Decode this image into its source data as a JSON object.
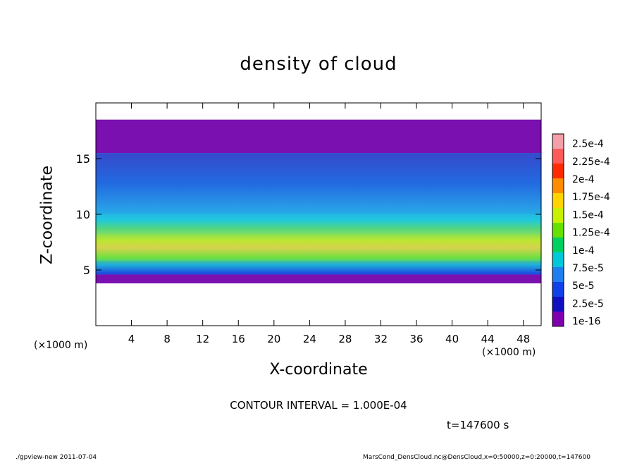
{
  "chart_data": {
    "type": "heatmap",
    "title": "density of cloud",
    "xlabel": "X-coordinate",
    "ylabel": "Z-coordinate",
    "x_unit_label": "(×1000 m)",
    "xlim": [
      0,
      50
    ],
    "ylim": [
      0,
      20
    ],
    "x_ticks": [
      4,
      8,
      12,
      16,
      20,
      24,
      28,
      32,
      36,
      40,
      44,
      48
    ],
    "y_ticks": [
      5,
      10,
      15
    ],
    "colorbar_labels": [
      "2.5e-4",
      "2.25e-4",
      "2e-4",
      "1.75e-4",
      "1.5e-4",
      "1.25e-4",
      "1e-4",
      "7.5e-5",
      "5e-5",
      "2.5e-5",
      "1e-16"
    ],
    "colorbar_colors": [
      "#f4a0a8",
      "#ff5a5a",
      "#ff2a00",
      "#ff8c00",
      "#ffd400",
      "#c8f000",
      "#66e000",
      "#00d060",
      "#00c8d8",
      "#1f7ff0",
      "#1040e8",
      "#1010c0",
      "#8000b0"
    ],
    "cloud_layers": [
      {
        "z_bottom": 15.5,
        "z_top": 18.5,
        "level": "1e-16 to 2.5e-5",
        "color": "#7a10b0"
      },
      {
        "z_bottom": 10,
        "z_top": 15.5,
        "level": "5e-5 to 7.5e-5",
        "color": "#2080e0"
      },
      {
        "z_bottom": 8.2,
        "z_top": 10,
        "level": "7.5e-5 to 1e-4",
        "color": "#20c8e0"
      },
      {
        "z_bottom": 5.8,
        "z_top": 8.2,
        "level": "1e-4 to 1.75e-4",
        "color": "#70e040"
      },
      {
        "z_bottom": 4.6,
        "z_top": 5.8,
        "level": "2.5e-5 to 7.5e-5",
        "color": "#1a50e8"
      },
      {
        "z_bottom": 3.8,
        "z_top": 4.6,
        "level": "1e-16 to 2.5e-5",
        "color": "#7a10b0"
      }
    ],
    "contour_interval": "CONTOUR INTERVAL = 1.000E-04",
    "time_label": "t=147600 s"
  },
  "footer": {
    "left": "./gpview-new  2011-07-04",
    "right": "MarsCond_DensCloud.nc@DensCloud,x=0:50000,z=0:20000,t=147600"
  }
}
